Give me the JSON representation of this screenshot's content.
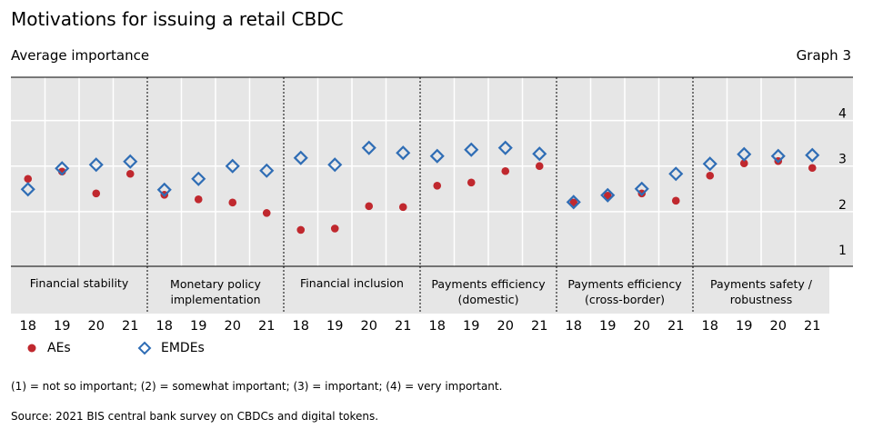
{
  "header": {
    "title": "Motivations for issuing a retail CBDC",
    "subtitle": "Average importance",
    "graph_number": "Graph 3"
  },
  "chart_data": {
    "type": "scatter",
    "groups": [
      "Financial stability",
      "Monetary policy implementation",
      "Financial inclusion",
      "Payments efficiency (domestic)",
      "Payments efficiency (cross-border)",
      "Payments safety / robustness"
    ],
    "group_labels": [
      [
        "Financial stability"
      ],
      [
        "Monetary policy",
        "implementation"
      ],
      [
        "Financial inclusion"
      ],
      [
        "Payments efficiency",
        "(domestic)"
      ],
      [
        "Payments efficiency",
        "(cross-border)"
      ],
      [
        "Payments safety /",
        "robustness"
      ]
    ],
    "years": [
      "18",
      "19",
      "20",
      "21"
    ],
    "series": [
      {
        "name": "AEs",
        "color": "#c0282e",
        "marker": "circle",
        "values": [
          [
            2.72,
            2.88,
            2.4,
            2.83
          ],
          [
            2.37,
            2.27,
            2.2,
            1.97
          ],
          [
            1.6,
            1.63,
            2.12,
            2.1
          ],
          [
            2.57,
            2.64,
            2.89,
            3.0
          ],
          [
            2.2,
            2.35,
            2.4,
            2.24
          ],
          [
            2.79,
            3.06,
            3.11,
            2.96
          ]
        ]
      },
      {
        "name": "EMDEs",
        "color": "#2f6db5",
        "marker": "diamond",
        "values": [
          [
            2.49,
            2.95,
            3.03,
            3.1
          ],
          [
            2.48,
            2.72,
            3.0,
            2.9
          ],
          [
            3.18,
            3.03,
            3.4,
            3.29
          ],
          [
            3.22,
            3.36,
            3.4,
            3.27
          ],
          [
            2.21,
            2.36,
            2.5,
            2.83
          ],
          [
            3.05,
            3.26,
            3.22,
            3.24
          ]
        ]
      }
    ],
    "y_ticks": [
      "1",
      "2",
      "3",
      "4"
    ],
    "ylim": [
      0.8,
      4.95
    ],
    "y_axis_side": "right",
    "grid": true
  },
  "legend": [
    {
      "label": "AEs"
    },
    {
      "label": "EMDEs"
    }
  ],
  "footnote": "(1) = not so important; (2) = somewhat important; (3) = important; (4) = very important.",
  "source": "Source: 2021 BIS central bank survey on CBDCs and digital tokens."
}
